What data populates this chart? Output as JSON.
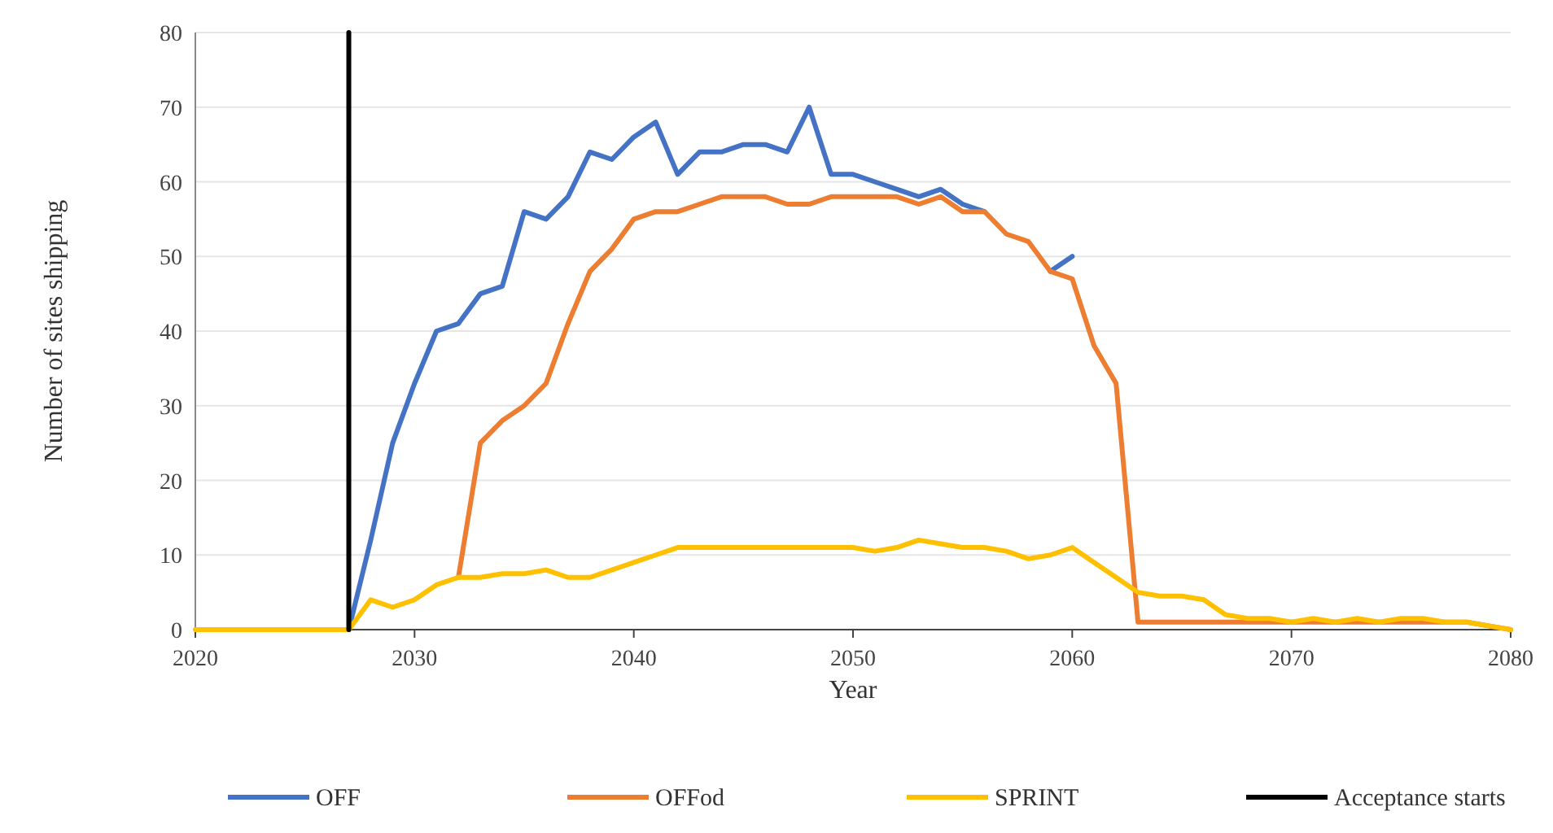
{
  "chart_data": {
    "type": "line",
    "xlabel": "Year",
    "ylabel": "Number of sites shipping",
    "xlim": [
      2020,
      2080
    ],
    "xticks": [
      2020,
      2030,
      2040,
      2050,
      2060,
      2070,
      2080
    ],
    "ylim": [
      0,
      80
    ],
    "yticks": [
      0,
      10,
      20,
      30,
      40,
      50,
      60,
      70,
      80
    ],
    "grid": "y",
    "legend": "bottom",
    "line_style": "solid",
    "marker": "none",
    "series": [
      {
        "name": "OFF",
        "color": "#4472c4",
        "x": [
          2027,
          2028,
          2029,
          2030,
          2031,
          2032,
          2033,
          2034,
          2035,
          2036,
          2037,
          2038,
          2039,
          2040,
          2041,
          2042,
          2043,
          2044,
          2045,
          2046,
          2047,
          2048,
          2049,
          2050,
          2051,
          2052,
          2053,
          2054,
          2055,
          2056,
          2057,
          2058,
          2059,
          2060
        ],
        "values": [
          0,
          12,
          25,
          33,
          40,
          41,
          45,
          46,
          56,
          55,
          58,
          64,
          63,
          66,
          68,
          61,
          64,
          64,
          65,
          65,
          64,
          70,
          61,
          61,
          60,
          59,
          58,
          59,
          57,
          56,
          null,
          null,
          48,
          50
        ]
      },
      {
        "name": "OFFod",
        "color": "#ed7d31",
        "x": [
          2032,
          2033,
          2034,
          2035,
          2036,
          2037,
          2038,
          2039,
          2040,
          2041,
          2042,
          2043,
          2044,
          2045,
          2046,
          2047,
          2048,
          2049,
          2050,
          2051,
          2052,
          2053,
          2054,
          2055,
          2056,
          2057,
          2058,
          2059,
          2060,
          2061,
          2062,
          2063,
          2064,
          2065,
          2066,
          2067,
          2068,
          2069,
          2070,
          2071,
          2072,
          2073,
          2074,
          2075,
          2076,
          2077,
          2078,
          2079,
          2080
        ],
        "values": [
          7,
          25,
          28,
          30,
          33,
          41,
          48,
          51,
          55,
          56,
          56,
          57,
          58,
          58,
          58,
          57,
          57,
          58,
          58,
          58,
          58,
          57,
          58,
          56,
          56,
          53,
          52,
          48,
          47,
          38,
          33,
          1,
          1,
          1,
          1,
          1,
          1,
          1,
          1,
          1,
          1,
          1,
          1,
          1,
          1,
          1,
          1,
          0.5,
          0
        ]
      },
      {
        "name": "SPRINT",
        "color": "#ffc000",
        "x": [
          2020,
          2027,
          2028,
          2029,
          2030,
          2031,
          2032,
          2033,
          2034,
          2035,
          2036,
          2037,
          2038,
          2039,
          2040,
          2041,
          2042,
          2043,
          2044,
          2045,
          2046,
          2047,
          2048,
          2049,
          2050,
          2051,
          2052,
          2053,
          2054,
          2055,
          2056,
          2057,
          2058,
          2059,
          2060,
          2061,
          2062,
          2063,
          2064,
          2065,
          2066,
          2067,
          2068,
          2069,
          2070,
          2071,
          2072,
          2073,
          2074,
          2075,
          2076,
          2077,
          2078,
          2079,
          2080
        ],
        "values": [
          0,
          0,
          4,
          3,
          4,
          6,
          7,
          7,
          7.5,
          7.5,
          8,
          7,
          7,
          8,
          9,
          10,
          11,
          11,
          11,
          11,
          11,
          11,
          11,
          11,
          11,
          10.5,
          11,
          12,
          11.5,
          11,
          11,
          10.5,
          9.5,
          10,
          11,
          9,
          7,
          5,
          4.5,
          4.5,
          4,
          2,
          1.5,
          1.5,
          1,
          1.5,
          1,
          1.5,
          1,
          1.5,
          1.5,
          1,
          1,
          0.5,
          0
        ]
      },
      {
        "name": "Acceptance starts",
        "color": "#000000",
        "x": [
          2027,
          2027
        ],
        "values": [
          0,
          80
        ]
      }
    ]
  }
}
